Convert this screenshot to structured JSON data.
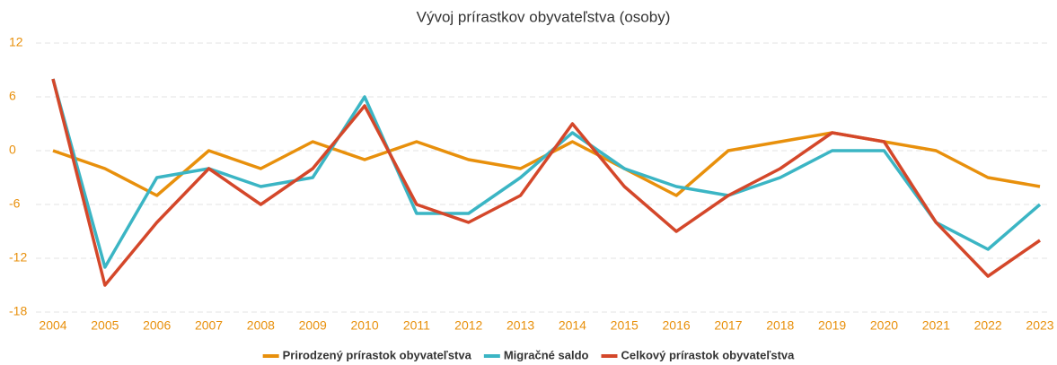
{
  "chart_data": {
    "type": "line",
    "title": "Vývoj prírastkov obyvateľstva (osoby)",
    "categories": [
      "2004",
      "2005",
      "2006",
      "2007",
      "2008",
      "2009",
      "2010",
      "2011",
      "2012",
      "2013",
      "2014",
      "2015",
      "2016",
      "2017",
      "2018",
      "2019",
      "2020",
      "2021",
      "2022",
      "2023"
    ],
    "series": [
      {
        "name": "Prirodzený prírastok obyvateľstva",
        "color": "#e8900c",
        "values": [
          0,
          -2,
          -5,
          0,
          -2,
          1,
          -1,
          1,
          -1,
          -2,
          1,
          -2,
          -5,
          0,
          1,
          2,
          1,
          0,
          -3,
          -4
        ]
      },
      {
        "name": "Migračné saldo",
        "color": "#3bb5c4",
        "values": [
          8,
          -13,
          -3,
          -2,
          -4,
          -3,
          6,
          -7,
          -7,
          -3,
          2,
          -2,
          -4,
          -5,
          -3,
          0,
          0,
          -8,
          -11,
          -6
        ]
      },
      {
        "name": "Celkový prírastok obyvateľstva",
        "color": "#d4472a",
        "values": [
          8,
          -15,
          -8,
          -2,
          -6,
          -2,
          5,
          -6,
          -8,
          -5,
          3,
          -4,
          -9,
          -5,
          -2,
          2,
          1,
          -8,
          -14,
          -10
        ]
      }
    ],
    "ylim": [
      -18,
      12
    ],
    "yticks": [
      12,
      6,
      0,
      -6,
      -12,
      -18
    ],
    "grid": true,
    "legend": "bottom"
  }
}
